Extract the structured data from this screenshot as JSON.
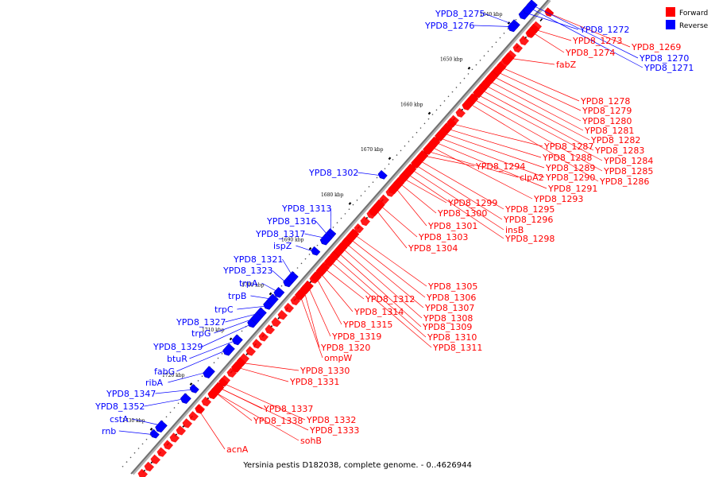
{
  "caption": "Yersinia pestis D182038, complete genome. - 0..4626944",
  "legend": [
    {
      "label": "Forward",
      "color": "#ff0000"
    },
    {
      "label": "Reverse",
      "color": "#0000ff"
    }
  ],
  "colors": {
    "forward": "#ff0000",
    "reverse": "#0000ff",
    "backbone": "#808080"
  },
  "axis": {
    "start_kbp": 1633,
    "end_kbp": 1738
  },
  "ticks": [
    {
      "label": "1640 kbp",
      "kbp": 1640
    },
    {
      "label": "1650 kbp",
      "kbp": 1650
    },
    {
      "label": "1660 kbp",
      "kbp": 1660
    },
    {
      "label": "1670 kbp",
      "kbp": 1670
    },
    {
      "label": "1680 kbp",
      "kbp": 1680
    },
    {
      "label": "1690 kbp",
      "kbp": 1690
    },
    {
      "label": "1700 kbp",
      "kbp": 1700
    },
    {
      "label": "1710 kbp",
      "kbp": 1710
    },
    {
      "label": "1720 kbp",
      "kbp": 1720
    },
    {
      "label": "1730 kbp",
      "kbp": 1730
    }
  ],
  "genes": [
    {
      "name": "YPD8_1275",
      "strand": "reverse",
      "kbp": 1639.2
    },
    {
      "name": "YPD8_1276",
      "strand": "reverse",
      "kbp": 1639.6
    },
    {
      "name": "YPD8_1272",
      "strand": "reverse",
      "kbp": 1636.5
    },
    {
      "name": "YPD8_1269",
      "strand": "forward",
      "kbp": 1634.0
    },
    {
      "name": "YPD8_1270",
      "strand": "reverse",
      "kbp": 1634.8
    },
    {
      "name": "YPD8_1271",
      "strand": "reverse",
      "kbp": 1635.4
    },
    {
      "name": "YPD8_1273",
      "strand": "forward",
      "kbp": 1637.6
    },
    {
      "name": "YPD8_1274",
      "strand": "forward",
      "kbp": 1638.2
    },
    {
      "name": "fabZ",
      "strand": "forward",
      "kbp": 1644.0
    },
    {
      "name": "YPD8_1278",
      "strand": "forward",
      "kbp": 1646.0
    },
    {
      "name": "YPD8_1279",
      "strand": "forward",
      "kbp": 1647.0
    },
    {
      "name": "YPD8_1280",
      "strand": "forward",
      "kbp": 1648.0
    },
    {
      "name": "YPD8_1281",
      "strand": "forward",
      "kbp": 1649.0
    },
    {
      "name": "YPD8_1282",
      "strand": "forward",
      "kbp": 1650.0
    },
    {
      "name": "YPD8_1283",
      "strand": "forward",
      "kbp": 1651.0
    },
    {
      "name": "YPD8_1284",
      "strand": "forward",
      "kbp": 1652.0
    },
    {
      "name": "YPD8_1285",
      "strand": "forward",
      "kbp": 1653.0
    },
    {
      "name": "YPD8_1286",
      "strand": "forward",
      "kbp": 1654.0
    },
    {
      "name": "YPD8_1287",
      "strand": "forward",
      "kbp": 1658.5
    },
    {
      "name": "YPD8_1288",
      "strand": "forward",
      "kbp": 1659.6
    },
    {
      "name": "YPD8_1289",
      "strand": "forward",
      "kbp": 1660.6
    },
    {
      "name": "YPD8_1290",
      "strand": "forward",
      "kbp": 1661.6
    },
    {
      "name": "YPD8_1291",
      "strand": "forward",
      "kbp": 1662.6
    },
    {
      "name": "YPD8_1293",
      "strand": "forward",
      "kbp": 1663.6
    },
    {
      "name": "clpA2",
      "strand": "forward",
      "kbp": 1664.6
    },
    {
      "name": "YPD8_1294",
      "strand": "forward",
      "kbp": 1665.6
    },
    {
      "name": "YPD8_1295",
      "strand": "forward",
      "kbp": 1666.6
    },
    {
      "name": "YPD8_1296",
      "strand": "forward",
      "kbp": 1667.6
    },
    {
      "name": "insB",
      "strand": "forward",
      "kbp": 1668.6
    },
    {
      "name": "YPD8_1298",
      "strand": "forward",
      "kbp": 1669.6
    },
    {
      "name": "YPD8_1299",
      "strand": "forward",
      "kbp": 1670.6
    },
    {
      "name": "YPD8_1300",
      "strand": "forward",
      "kbp": 1671.6
    },
    {
      "name": "YPD8_1301",
      "strand": "forward",
      "kbp": 1672.6
    },
    {
      "name": "YPD8_1302",
      "strand": "reverse",
      "kbp": 1672.6
    },
    {
      "name": "YPD8_1303",
      "strand": "forward",
      "kbp": 1676.5
    },
    {
      "name": "YPD8_1304",
      "strand": "forward",
      "kbp": 1677.5
    },
    {
      "name": "YPD8_1313",
      "strand": "reverse",
      "kbp": 1685.5
    },
    {
      "name": "YPD8_1316",
      "strand": "reverse",
      "kbp": 1686.0
    },
    {
      "name": "YPD8_1317",
      "strand": "reverse",
      "kbp": 1686.5
    },
    {
      "name": "ispZ",
      "strand": "reverse",
      "kbp": 1689.5
    },
    {
      "name": "YPD8_1305",
      "strand": "forward",
      "kbp": 1683.0
    },
    {
      "name": "YPD8_1306",
      "strand": "forward",
      "kbp": 1684.0
    },
    {
      "name": "YPD8_1307",
      "strand": "forward",
      "kbp": 1685.0
    },
    {
      "name": "YPD8_1308",
      "strand": "forward",
      "kbp": 1686.0
    },
    {
      "name": "YPD8_1309",
      "strand": "forward",
      "kbp": 1687.0
    },
    {
      "name": "YPD8_1310",
      "strand": "forward",
      "kbp": 1688.0
    },
    {
      "name": "YPD8_1311",
      "strand": "forward",
      "kbp": 1689.0
    },
    {
      "name": "YPD8_1312",
      "strand": "forward",
      "kbp": 1690.5
    },
    {
      "name": "YPD8_1314",
      "strand": "forward",
      "kbp": 1691.5
    },
    {
      "name": "YPD8_1315",
      "strand": "forward",
      "kbp": 1692.5
    },
    {
      "name": "YPD8_1319",
      "strand": "forward",
      "kbp": 1694.5
    },
    {
      "name": "YPD8_1320",
      "strand": "forward",
      "kbp": 1695.5
    },
    {
      "name": "ompW",
      "strand": "forward",
      "kbp": 1696.5
    },
    {
      "name": "YPD8_1321",
      "strand": "reverse",
      "kbp": 1695.0
    },
    {
      "name": "YPD8_1323",
      "strand": "reverse",
      "kbp": 1696.5
    },
    {
      "name": "trpA",
      "strand": "reverse",
      "kbp": 1698.5
    },
    {
      "name": "trpB",
      "strand": "reverse",
      "kbp": 1700.0
    },
    {
      "name": "trpC",
      "strand": "reverse",
      "kbp": 1701.5
    },
    {
      "name": "YPD8_1327",
      "strand": "reverse",
      "kbp": 1703.0
    },
    {
      "name": "trpG",
      "strand": "reverse",
      "kbp": 1704.0
    },
    {
      "name": "YPD8_1329",
      "strand": "reverse",
      "kbp": 1705.5
    },
    {
      "name": "btuR",
      "strand": "reverse",
      "kbp": 1709.0
    },
    {
      "name": "fabG",
      "strand": "reverse",
      "kbp": 1711.0
    },
    {
      "name": "YPD8_1330",
      "strand": "forward",
      "kbp": 1711.5
    },
    {
      "name": "YPD8_1331",
      "strand": "forward",
      "kbp": 1712.5
    },
    {
      "name": "ribA",
      "strand": "reverse",
      "kbp": 1716.0
    },
    {
      "name": "YPD8_1347",
      "strand": "reverse",
      "kbp": 1720.0
    },
    {
      "name": "YPD8_1352",
      "strand": "reverse",
      "kbp": 1722.0
    },
    {
      "name": "cstA",
      "strand": "reverse",
      "kbp": 1728.0
    },
    {
      "name": "rnb",
      "strand": "reverse",
      "kbp": 1730.0
    },
    {
      "name": "YPD8_1337",
      "strand": "forward",
      "kbp": 1717.0
    },
    {
      "name": "YPD8_1338",
      "strand": "forward",
      "kbp": 1718.0
    },
    {
      "name": "YPD8_1332",
      "strand": "forward",
      "kbp": 1716.0
    },
    {
      "name": "YPD8_1333",
      "strand": "forward",
      "kbp": 1717.0
    },
    {
      "name": "sohB",
      "strand": "forward",
      "kbp": 1718.0
    },
    {
      "name": "acnA",
      "strand": "forward",
      "kbp": 1722.0
    }
  ]
}
